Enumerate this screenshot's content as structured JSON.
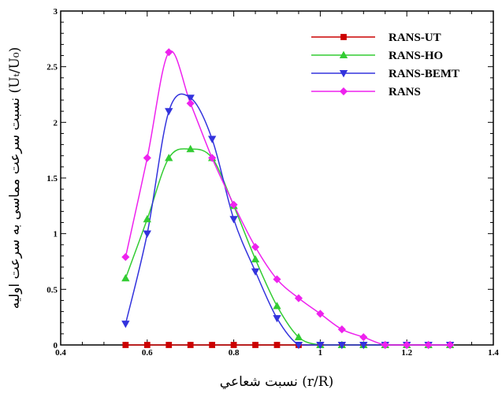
{
  "chart_data": {
    "type": "line",
    "xlabel": "(r/R) نسبت شعاعي",
    "ylabel": "(Uₜ/U₀) نسبت سرعت مماسی به سرعت اولیه",
    "xlim": [
      0.4,
      1.4
    ],
    "ylim": [
      0,
      3
    ],
    "x_ticks": [
      "0.4",
      "0.6",
      "0.8",
      "1",
      "1.2",
      "1.4"
    ],
    "y_ticks": [
      "0",
      "0.5",
      "1",
      "1.5",
      "2",
      "2.5",
      "3"
    ],
    "grid": false,
    "legend_position": "top-right",
    "series": [
      {
        "name": "RANS-UT",
        "color": "#cc0000",
        "marker": "square",
        "x": [
          0.55,
          0.6,
          0.65,
          0.7,
          0.75,
          0.8,
          0.85,
          0.9,
          0.95,
          1.0,
          1.05,
          1.1,
          1.15,
          1.2,
          1.25,
          1.3
        ],
        "values": [
          0,
          0,
          0,
          0,
          0,
          0,
          0,
          0,
          0,
          0,
          0,
          0,
          0,
          0,
          0,
          0
        ]
      },
      {
        "name": "RANS-HO",
        "color": "#33cc33",
        "marker": "triangle-up",
        "x": [
          0.55,
          0.6,
          0.65,
          0.7,
          0.75,
          0.8,
          0.85,
          0.9,
          0.95,
          1.0,
          1.05,
          1.1,
          1.15,
          1.2,
          1.25,
          1.3
        ],
        "values": [
          0.6,
          1.13,
          1.68,
          1.76,
          1.68,
          1.25,
          0.77,
          0.35,
          0.07,
          0,
          0,
          0,
          0,
          0,
          0,
          0
        ]
      },
      {
        "name": "RANS-BEMT",
        "color": "#3333dd",
        "marker": "triangle-down",
        "x": [
          0.55,
          0.6,
          0.65,
          0.7,
          0.75,
          0.8,
          0.85,
          0.9,
          0.95,
          1.0,
          1.05,
          1.1,
          1.15,
          1.2,
          1.25,
          1.3
        ],
        "values": [
          0.19,
          1.0,
          2.1,
          2.22,
          1.85,
          1.13,
          0.66,
          0.24,
          0,
          0,
          0,
          0,
          0,
          0,
          0,
          0
        ]
      },
      {
        "name": "RANS",
        "color": "#ee22ee",
        "marker": "diamond",
        "x": [
          0.55,
          0.6,
          0.65,
          0.7,
          0.75,
          0.8,
          0.85,
          0.9,
          0.95,
          1.0,
          1.05,
          1.1,
          1.15,
          1.2,
          1.25,
          1.3
        ],
        "values": [
          0.79,
          1.68,
          2.63,
          2.17,
          1.68,
          1.26,
          0.88,
          0.59,
          0.42,
          0.28,
          0.14,
          0.07,
          0,
          0,
          0,
          0
        ]
      }
    ]
  }
}
